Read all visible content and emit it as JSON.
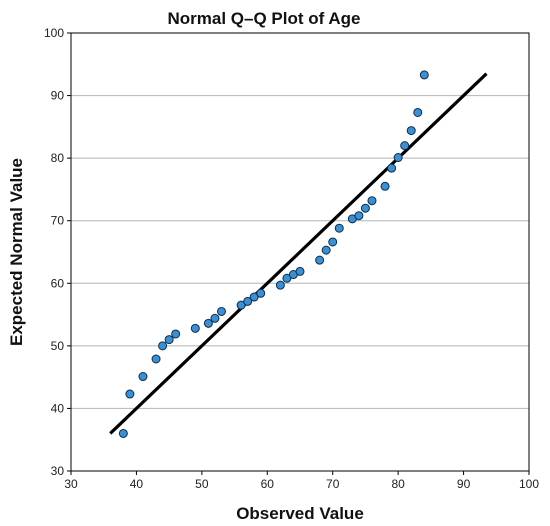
{
  "chart_data": {
    "type": "scatter",
    "title": "Normal Q–Q Plot of Age",
    "xlabel": "Observed Value",
    "ylabel": "Expected Normal Value",
    "xlim": [
      30,
      100
    ],
    "ylim": [
      30,
      100
    ],
    "xticks": [
      30,
      40,
      50,
      60,
      70,
      80,
      90,
      100
    ],
    "yticks": [
      30,
      40,
      50,
      60,
      70,
      80,
      90,
      100
    ],
    "grid": {
      "horizontal": true,
      "vertical": false
    },
    "legend": "none",
    "point_color": "#3a8fd6",
    "point_edge_color": "#0d2e4a",
    "line_color": "#000000",
    "reference_line": {
      "x": [
        36,
        93.5
      ],
      "y": [
        36,
        93.5
      ]
    },
    "points": [
      {
        "x": 38,
        "y": 36.0
      },
      {
        "x": 39,
        "y": 42.3
      },
      {
        "x": 41,
        "y": 45.1
      },
      {
        "x": 43,
        "y": 47.9
      },
      {
        "x": 44,
        "y": 50.0
      },
      {
        "x": 45,
        "y": 51.0
      },
      {
        "x": 46,
        "y": 51.9
      },
      {
        "x": 49,
        "y": 52.8
      },
      {
        "x": 51,
        "y": 53.6
      },
      {
        "x": 52,
        "y": 54.4
      },
      {
        "x": 53,
        "y": 55.5
      },
      {
        "x": 56,
        "y": 56.5
      },
      {
        "x": 57,
        "y": 57.1
      },
      {
        "x": 58,
        "y": 57.8
      },
      {
        "x": 59,
        "y": 58.4
      },
      {
        "x": 62,
        "y": 59.7
      },
      {
        "x": 63,
        "y": 60.8
      },
      {
        "x": 64,
        "y": 61.4
      },
      {
        "x": 65,
        "y": 61.9
      },
      {
        "x": 68,
        "y": 63.7
      },
      {
        "x": 69,
        "y": 65.3
      },
      {
        "x": 70,
        "y": 66.6
      },
      {
        "x": 71,
        "y": 68.8
      },
      {
        "x": 73,
        "y": 70.3
      },
      {
        "x": 74,
        "y": 70.8
      },
      {
        "x": 75,
        "y": 72.0
      },
      {
        "x": 76,
        "y": 73.2
      },
      {
        "x": 78,
        "y": 75.5
      },
      {
        "x": 79,
        "y": 78.4
      },
      {
        "x": 80,
        "y": 80.1
      },
      {
        "x": 81,
        "y": 82.0
      },
      {
        "x": 82,
        "y": 84.4
      },
      {
        "x": 83,
        "y": 87.3
      },
      {
        "x": 84,
        "y": 93.3
      }
    ]
  }
}
